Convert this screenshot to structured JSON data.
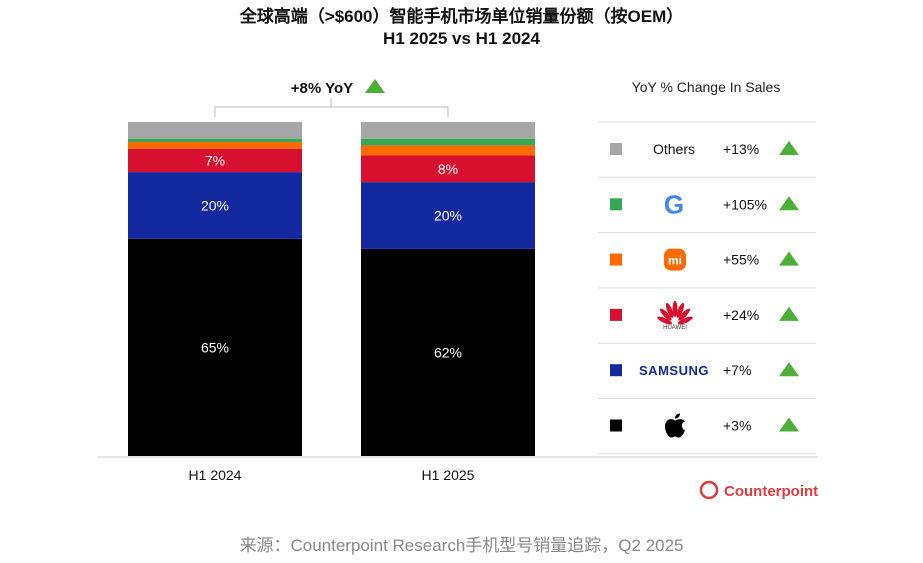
{
  "chart_data": {
    "type": "bar",
    "stacked": true,
    "title": "全球高端（>$600）智能手机市场单位销量份额（按OEM）",
    "subtitle": "H1 2025 vs H1 2024",
    "categories": [
      "H1 2024",
      "H1 2025"
    ],
    "ylim": [
      0,
      100
    ],
    "grid": false,
    "series": [
      {
        "name": "Apple",
        "color": "#000000",
        "values": [
          65,
          62
        ],
        "labels": [
          "65%",
          "62%"
        ],
        "yoy": "+3%"
      },
      {
        "name": "SAMSUNG",
        "color": "#1428a0",
        "values": [
          20,
          20
        ],
        "labels": [
          "20%",
          "20%"
        ],
        "yoy": "+7%"
      },
      {
        "name": "HUAWEI",
        "color": "#d6102e",
        "values": [
          7,
          8
        ],
        "labels": [
          "7%",
          "8%"
        ],
        "yoy": "+24%"
      },
      {
        "name": "Xiaomi",
        "color": "#ff6a00",
        "values": [
          2,
          3
        ],
        "labels": [
          "",
          ""
        ],
        "yoy": "+55%"
      },
      {
        "name": "Google",
        "color": "#34a853",
        "values": [
          1,
          2
        ],
        "labels": [
          "",
          ""
        ],
        "yoy": "+105%"
      },
      {
        "name": "Others",
        "color": "#a6a6a6",
        "values": [
          5,
          5
        ],
        "labels": [
          "",
          ""
        ],
        "yoy": "+13%"
      }
    ],
    "total_annotation": "+8% YoY",
    "legend_title": "YoY % Change In Sales",
    "legend_placement": "right",
    "up_color": "#4caf38"
  },
  "brand": "Counterpoint",
  "source": "来源：Counterpoint Research手机型号销量追踪，Q2 2025"
}
